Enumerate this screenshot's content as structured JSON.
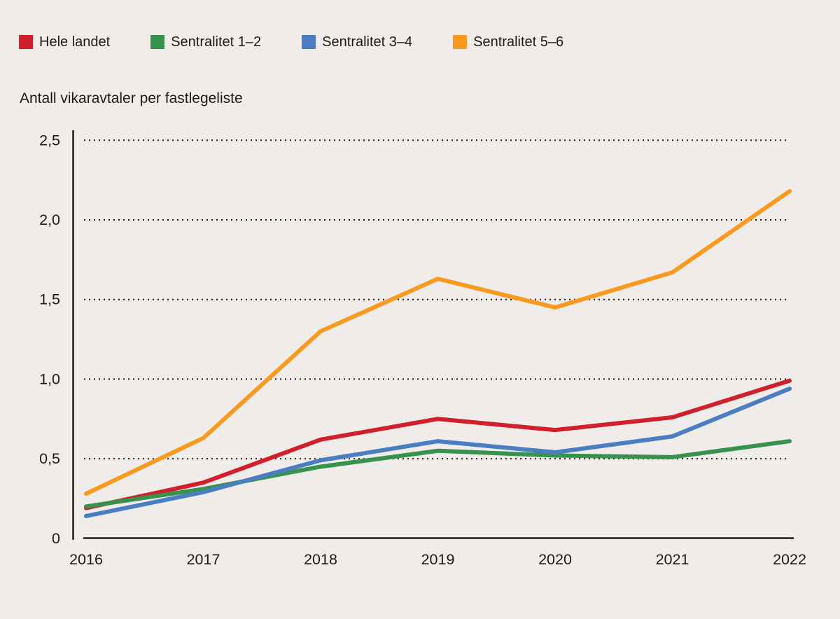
{
  "background_color": "#f0ece9",
  "text_color": "#1b1b1b",
  "axis_color": "#1a1a1a",
  "legend": {
    "items": [
      {
        "label": "Hele landet",
        "color": "#d0202e"
      },
      {
        "label": "Sentralitet 1–2",
        "color": "#37924e"
      },
      {
        "label": "Sentralitet 3–4",
        "color": "#4b7dc1"
      },
      {
        "label": "Sentralitet 5–6",
        "color": "#f79a1f"
      }
    ]
  },
  "chart_data": {
    "type": "line",
    "title": "Antall vikaravtaler per fastlegeliste",
    "xlabel": "",
    "ylabel": "Antall vikaravtaler per fastlegeliste",
    "x": [
      2016,
      2017,
      2018,
      2019,
      2020,
      2021,
      2022
    ],
    "x_tick_labels": [
      "2016",
      "2017",
      "2018",
      "2019",
      "2020",
      "2021",
      "2022"
    ],
    "ylim": [
      0,
      2.5
    ],
    "y_ticks": [
      0,
      0.5,
      1.0,
      1.5,
      2.0,
      2.5
    ],
    "y_tick_labels": [
      "0",
      "0,5",
      "1,0",
      "1,5",
      "2,0",
      "2,5"
    ],
    "grid": "horizontal dotted lines at each 0.5 step",
    "legend_position": "top-left",
    "series": [
      {
        "name": "Hele landet",
        "color": "#d0202e",
        "values": [
          0.19,
          0.35,
          0.62,
          0.75,
          0.68,
          0.76,
          0.99
        ]
      },
      {
        "name": "Sentralitet 1–2",
        "color": "#37924e",
        "values": [
          0.2,
          0.31,
          0.45,
          0.55,
          0.52,
          0.51,
          0.61
        ]
      },
      {
        "name": "Sentralitet 3–4",
        "color": "#4b7dc1",
        "values": [
          0.14,
          0.29,
          0.49,
          0.61,
          0.54,
          0.64,
          0.94
        ]
      },
      {
        "name": "Sentralitet 5–6",
        "color": "#f79a1f",
        "values": [
          0.28,
          0.63,
          1.3,
          1.63,
          1.45,
          1.67,
          2.18
        ]
      }
    ]
  }
}
